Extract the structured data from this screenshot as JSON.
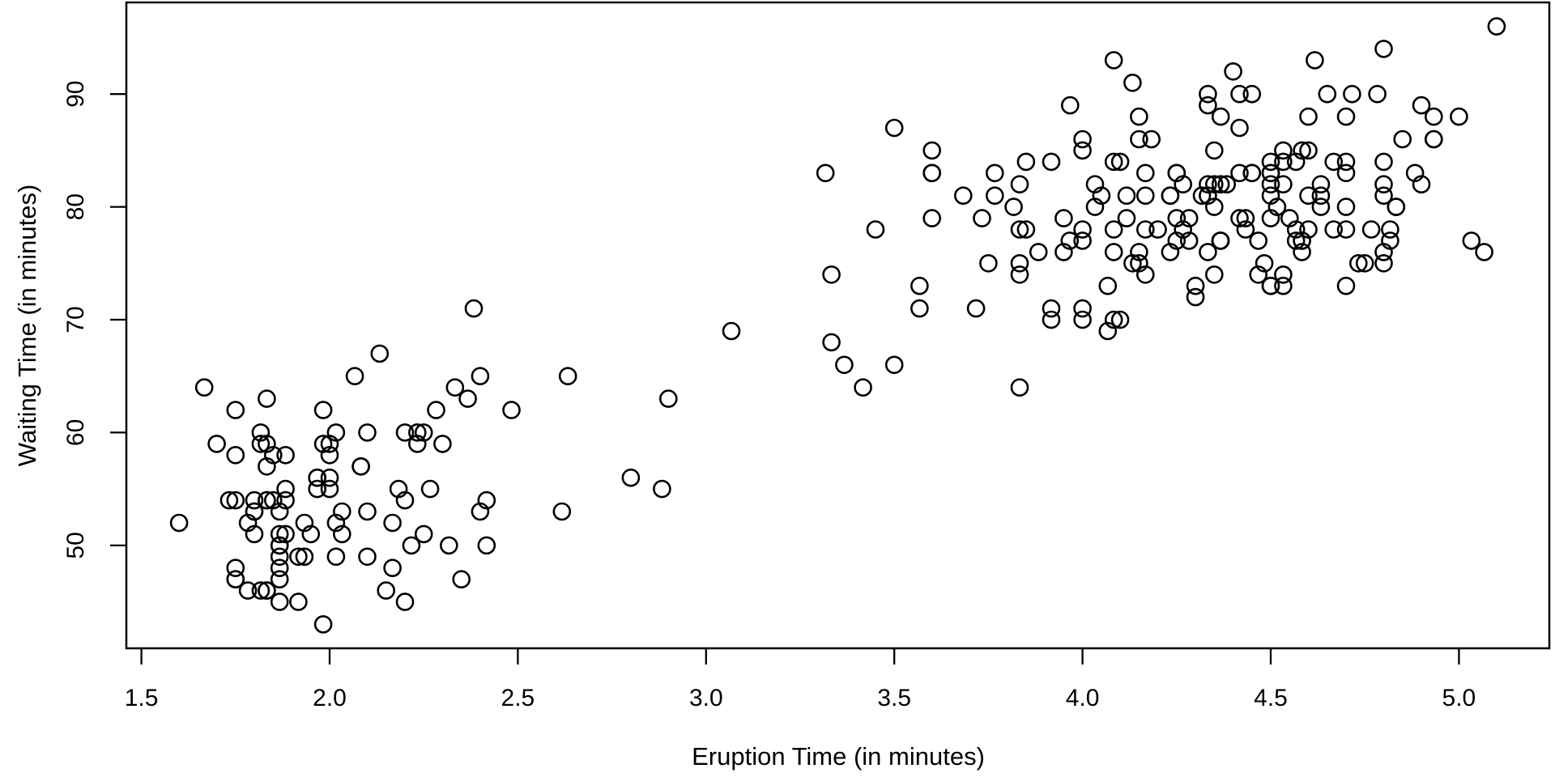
{
  "chart_data": {
    "type": "scatter",
    "title": "",
    "xlabel": "Eruption Time (in minutes)",
    "ylabel": "Waiting Time (in minutes)",
    "x_tick_values": [
      1.5,
      2.0,
      2.5,
      3.0,
      3.5,
      4.0,
      4.5,
      5.0
    ],
    "x_tick_labels": [
      "1.5",
      "2.0",
      "2.5",
      "3.0",
      "3.5",
      "4.0",
      "4.5",
      "5.0"
    ],
    "y_tick_values": [
      50,
      60,
      70,
      80,
      90
    ],
    "y_tick_labels": [
      "50",
      "60",
      "70",
      "80",
      "90"
    ],
    "xlim": [
      1.46,
      5.24
    ],
    "ylim": [
      40.88,
      98.12
    ],
    "grid": false,
    "legend": null,
    "background": "#ffffff",
    "frame_color": "#000000",
    "marker": {
      "shape": "open-circle",
      "radius_px": 10,
      "stroke": "#000000",
      "stroke_width": 2.6,
      "fill": "none"
    },
    "n_points": 272,
    "series": [
      {
        "name": "points",
        "x": [
          3.6,
          1.8,
          3.333,
          2.283,
          4.533,
          2.883,
          4.7,
          3.6,
          1.95,
          4.35,
          1.833,
          3.917,
          4.2,
          1.75,
          4.7,
          2.167,
          1.75,
          4.8,
          1.6,
          4.25,
          1.8,
          1.75,
          3.45,
          3.067,
          4.533,
          3.6,
          1.967,
          4.083,
          3.85,
          4.433,
          4.3,
          4.467,
          3.367,
          4.033,
          3.833,
          2.017,
          1.867,
          4.833,
          1.833,
          4.783,
          4.35,
          1.883,
          4.567,
          1.75,
          4.533,
          3.317,
          3.833,
          2.1,
          4.633,
          2.0,
          4.8,
          4.716,
          1.833,
          4.833,
          1.733,
          4.883,
          3.717,
          1.667,
          4.567,
          4.317,
          2.233,
          4.5,
          1.75,
          4.8,
          1.817,
          4.4,
          4.167,
          4.7,
          2.067,
          4.7,
          4.033,
          1.967,
          4.5,
          4.0,
          1.983,
          5.067,
          2.017,
          4.567,
          3.883,
          3.6,
          4.133,
          4.333,
          4.1,
          2.633,
          4.067,
          4.933,
          3.95,
          4.517,
          2.167,
          4.0,
          2.2,
          4.333,
          1.867,
          4.817,
          1.833,
          4.3,
          4.667,
          3.75,
          1.867,
          4.9,
          2.483,
          4.367,
          2.1,
          4.5,
          4.05,
          1.867,
          4.7,
          1.783,
          4.85,
          3.683,
          4.733,
          2.3,
          4.9,
          4.417,
          1.7,
          4.633,
          2.317,
          4.6,
          1.817,
          4.417,
          2.617,
          4.067,
          4.25,
          1.967,
          4.6,
          3.767,
          1.917,
          4.5,
          2.267,
          4.65,
          1.867,
          4.167,
          2.8,
          4.333,
          1.833,
          4.383,
          1.883,
          4.933,
          2.033,
          3.733,
          4.233,
          2.233,
          4.533,
          4.817,
          4.333,
          1.983,
          4.633,
          2.017,
          5.1,
          1.8,
          5.033,
          4.0,
          2.4,
          4.6,
          3.567,
          4.0,
          4.5,
          4.083,
          1.8,
          3.967,
          2.2,
          4.15,
          2.0,
          3.833,
          3.5,
          4.583,
          2.367,
          5.0,
          1.933,
          4.617,
          1.917,
          2.083,
          4.583,
          3.333,
          4.167,
          4.333,
          4.5,
          2.417,
          4.0,
          4.167,
          1.883,
          4.583,
          4.25,
          3.767,
          2.033,
          4.433,
          4.083,
          1.833,
          4.417,
          2.183,
          4.8,
          1.833,
          4.8,
          4.1,
          3.966,
          4.233,
          3.5,
          4.366,
          2.25,
          4.667,
          2.1,
          4.35,
          4.133,
          1.867,
          4.6,
          1.783,
          4.367,
          3.85,
          1.933,
          4.5,
          2.383,
          4.7,
          1.867,
          3.833,
          3.417,
          4.233,
          2.4,
          4.8,
          2.0,
          4.15,
          1.867,
          4.267,
          1.75,
          4.483,
          4.0,
          4.117,
          4.083,
          4.267,
          3.917,
          4.55,
          4.083,
          2.417,
          4.183,
          2.217,
          4.45,
          1.883,
          1.85,
          4.283,
          3.95,
          2.333,
          4.15,
          2.35,
          4.933,
          2.9,
          4.583,
          3.833,
          2.083,
          4.367,
          2.133,
          4.35,
          2.2,
          4.45,
          3.567,
          4.5,
          4.15,
          3.817,
          3.917,
          4.45,
          2.0,
          4.283,
          4.767,
          4.533,
          1.85,
          4.25,
          1.983,
          2.25,
          4.75,
          4.117,
          2.15,
          4.417,
          1.817,
          4.467
        ],
        "y": [
          79,
          54,
          74,
          62,
          85,
          55,
          88,
          85,
          51,
          85,
          54,
          84,
          78,
          47,
          83,
          52,
          62,
          84,
          52,
          79,
          51,
          47,
          78,
          69,
          74,
          83,
          55,
          76,
          78,
          79,
          73,
          77,
          66,
          80,
          74,
          52,
          48,
          80,
          59,
          90,
          80,
          58,
          84,
          58,
          73,
          83,
          64,
          53,
          82,
          59,
          75,
          90,
          54,
          80,
          54,
          83,
          71,
          64,
          77,
          81,
          59,
          84,
          48,
          82,
          60,
          92,
          78,
          78,
          65,
          73,
          82,
          56,
          79,
          71,
          62,
          76,
          60,
          78,
          76,
          83,
          75,
          82,
          70,
          65,
          73,
          88,
          76,
          80,
          48,
          86,
          60,
          90,
          50,
          78,
          63,
          72,
          84,
          75,
          51,
          82,
          62,
          88,
          49,
          83,
          81,
          47,
          84,
          52,
          86,
          81,
          75,
          59,
          89,
          79,
          59,
          81,
          50,
          85,
          59,
          87,
          53,
          69,
          77,
          56,
          88,
          81,
          45,
          82,
          55,
          90,
          45,
          83,
          56,
          89,
          46,
          82,
          51,
          86,
          53,
          79,
          81,
          60,
          82,
          77,
          76,
          59,
          80,
          49,
          96,
          53,
          77,
          77,
          65,
          81,
          71,
          70,
          81,
          93,
          53,
          89,
          45,
          86,
          58,
          78,
          66,
          76,
          63,
          88,
          52,
          93,
          49,
          57,
          77,
          68,
          81,
          81,
          73,
          50,
          85,
          74,
          55,
          77,
          83,
          83,
          51,
          78,
          84,
          46,
          83,
          55,
          81,
          57,
          76,
          84,
          77,
          81,
          87,
          77,
          51,
          78,
          60,
          82,
          91,
          53,
          78,
          46,
          77,
          84,
          49,
          83,
          71,
          80,
          49,
          75,
          64,
          76,
          53,
          94,
          55,
          76,
          50,
          82,
          54,
          75,
          78,
          79,
          78,
          78,
          70,
          79,
          70,
          54,
          86,
          50,
          90,
          54,
          54,
          77,
          79,
          64,
          75,
          47,
          86,
          63,
          85,
          82,
          57,
          82,
          67,
          74,
          54,
          83,
          73,
          73,
          88,
          80,
          71,
          83,
          56,
          79,
          78,
          84,
          58,
          83,
          43,
          60,
          75,
          81,
          46,
          90,
          46,
          74
        ]
      }
    ]
  }
}
